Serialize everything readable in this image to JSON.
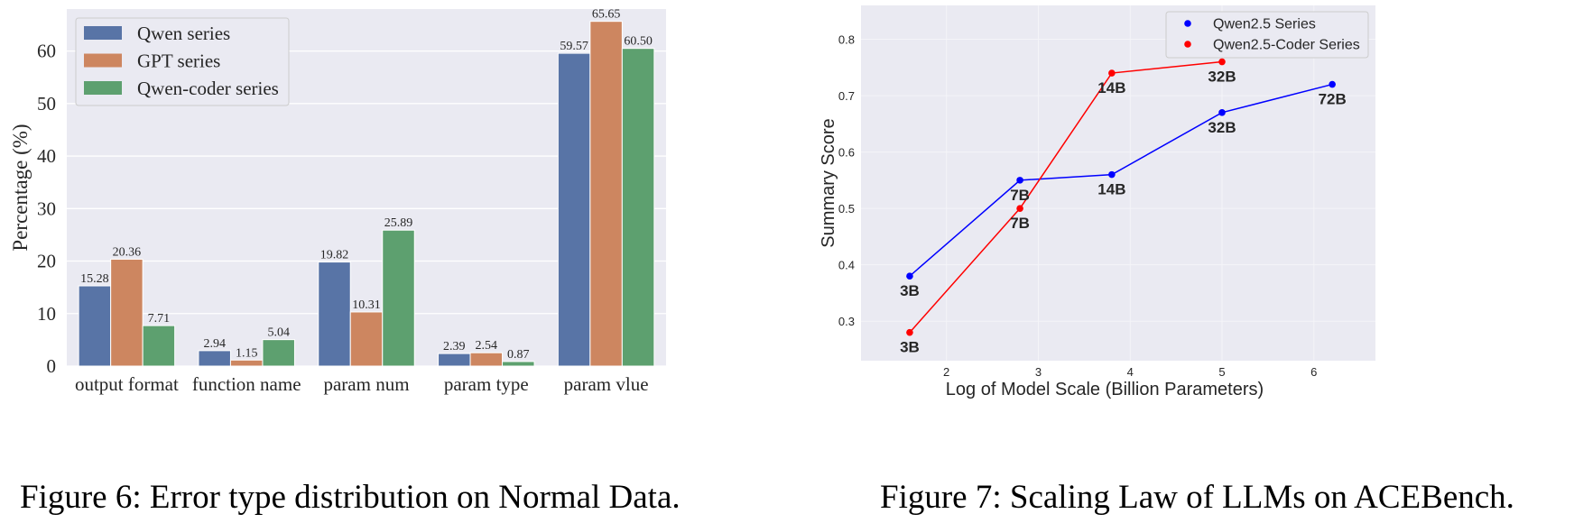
{
  "figures": [
    {
      "caption": "Figure 6: Error type distribution on Normal Data.",
      "chart_data": {
        "type": "bar",
        "title": "",
        "xlabel": "",
        "ylabel": "Percentage (%)",
        "ylim": [
          0,
          68
        ],
        "yticks": [
          0,
          10,
          20,
          30,
          40,
          50,
          60
        ],
        "grid": true,
        "legend_position": "top-left",
        "categories": [
          "output format",
          "function name",
          "param num",
          "param type",
          "param vlue"
        ],
        "series": [
          {
            "name": "Qwen series",
            "color": "#5874a6",
            "values": [
              15.28,
              2.94,
              19.82,
              2.39,
              59.57
            ]
          },
          {
            "name": "GPT series",
            "color": "#cd8660",
            "values": [
              20.36,
              1.15,
              10.31,
              2.54,
              65.65
            ]
          },
          {
            "name": "Qwen-coder series",
            "color": "#5da06f",
            "values": [
              7.71,
              5.04,
              25.89,
              0.87,
              60.5
            ]
          }
        ]
      }
    },
    {
      "caption": "Figure 7: Scaling Law of LLMs on ACEBench.",
      "chart_data": {
        "type": "line",
        "title": "",
        "xlabel": "Log of Model Scale (Billion Parameters)",
        "ylabel": "Summary Score",
        "xlim": [
          1.07,
          6.67
        ],
        "ylim": [
          0.23,
          0.86
        ],
        "xticks": [
          2,
          3,
          4,
          5,
          6
        ],
        "yticks": [
          0.3,
          0.4,
          0.5,
          0.6,
          0.7,
          0.8
        ],
        "grid": true,
        "legend_position": "top-right",
        "series": [
          {
            "name": "Qwen2.5 Series",
            "color": "#0000ff",
            "x": [
              1.6,
              2.8,
              3.8,
              5.0,
              6.2
            ],
            "y": [
              0.38,
              0.55,
              0.56,
              0.67,
              0.72
            ],
            "labels": [
              "3B",
              "7B",
              "14B",
              "32B",
              "72B"
            ]
          },
          {
            "name": "Qwen2.5-Coder Series",
            "color": "#ff0000",
            "x": [
              1.6,
              2.8,
              3.8,
              5.0
            ],
            "y": [
              0.28,
              0.5,
              0.74,
              0.76
            ],
            "labels": [
              "3B",
              "7B",
              "14B",
              "32B"
            ]
          }
        ]
      }
    }
  ]
}
